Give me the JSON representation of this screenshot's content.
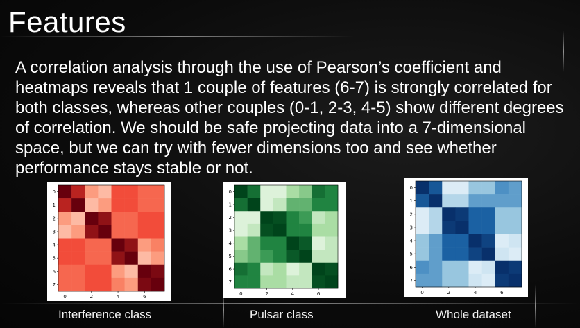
{
  "slide": {
    "title": "Features",
    "body": "A correlation analysis through the use of Pearson’s coefficient and heatmaps reveals that 1 couple of features (6-7) is strongly correlated for both classes, whereas other couples (0-1, 2-3, 4-5) show different degrees of correlation. We should be safe projecting data into a 7-dimensional space, but we can try with fewer dimensions too and see whether performance stays stable or not."
  },
  "chart_data": [
    {
      "type": "heatmap",
      "caption": "Interference class",
      "colormap": "Reds",
      "x_ticks": [
        "0",
        "2",
        "4",
        "6"
      ],
      "y_ticks": [
        "0",
        "1",
        "2",
        "3",
        "4",
        "5",
        "6",
        "7"
      ],
      "matrix": [
        [
          1.0,
          0.8,
          0.3,
          0.2,
          0.6,
          0.6,
          0.5,
          0.5
        ],
        [
          0.8,
          1.0,
          0.2,
          0.3,
          0.6,
          0.6,
          0.5,
          0.5
        ],
        [
          0.3,
          0.2,
          1.0,
          0.9,
          0.5,
          0.5,
          0.6,
          0.6
        ],
        [
          0.2,
          0.3,
          0.9,
          1.0,
          0.5,
          0.5,
          0.6,
          0.6
        ],
        [
          0.6,
          0.6,
          0.5,
          0.5,
          1.0,
          0.9,
          0.3,
          0.4
        ],
        [
          0.6,
          0.6,
          0.5,
          0.5,
          0.9,
          1.0,
          0.2,
          0.3
        ],
        [
          0.5,
          0.5,
          0.6,
          0.6,
          0.3,
          0.2,
          1.0,
          0.95
        ],
        [
          0.5,
          0.5,
          0.6,
          0.6,
          0.4,
          0.3,
          0.95,
          1.0
        ]
      ]
    },
    {
      "type": "heatmap",
      "caption": "Pulsar class",
      "colormap": "Greens",
      "x_ticks": [
        "0",
        "2",
        "4",
        "6"
      ],
      "y_ticks": [
        "0",
        "1",
        "2",
        "3",
        "4",
        "5",
        "6",
        "7"
      ],
      "matrix": [
        [
          1.0,
          0.8,
          0.1,
          0.1,
          0.3,
          0.4,
          0.8,
          0.7
        ],
        [
          0.8,
          1.0,
          0.1,
          0.2,
          0.5,
          0.5,
          0.7,
          0.7
        ],
        [
          0.1,
          0.1,
          1.0,
          0.95,
          0.7,
          0.6,
          0.2,
          0.3
        ],
        [
          0.1,
          0.2,
          0.95,
          1.0,
          0.7,
          0.7,
          0.3,
          0.3
        ],
        [
          0.3,
          0.5,
          0.7,
          0.7,
          1.0,
          0.9,
          0.1,
          0.2
        ],
        [
          0.4,
          0.5,
          0.6,
          0.7,
          0.9,
          1.0,
          0.2,
          0.2
        ],
        [
          0.8,
          0.7,
          0.2,
          0.3,
          0.1,
          0.2,
          1.0,
          0.95
        ],
        [
          0.7,
          0.7,
          0.3,
          0.3,
          0.2,
          0.2,
          0.95,
          1.0
        ]
      ]
    },
    {
      "type": "heatmap",
      "caption": "Whole dataset",
      "colormap": "Blues",
      "x_ticks": [
        "0",
        "2",
        "4",
        "6"
      ],
      "y_ticks": [
        "0",
        "1",
        "2",
        "3",
        "4",
        "5",
        "6",
        "7"
      ],
      "matrix": [
        [
          1.0,
          0.8,
          0.1,
          0.1,
          0.35,
          0.35,
          0.55,
          0.5
        ],
        [
          0.8,
          1.0,
          0.25,
          0.25,
          0.5,
          0.5,
          0.5,
          0.5
        ],
        [
          0.1,
          0.25,
          1.0,
          0.95,
          0.75,
          0.75,
          0.35,
          0.35
        ],
        [
          0.1,
          0.25,
          0.95,
          1.0,
          0.75,
          0.75,
          0.35,
          0.35
        ],
        [
          0.35,
          0.5,
          0.75,
          0.75,
          1.0,
          0.9,
          0.1,
          0.15
        ],
        [
          0.35,
          0.5,
          0.75,
          0.75,
          0.9,
          1.0,
          0.15,
          0.1
        ],
        [
          0.55,
          0.5,
          0.35,
          0.35,
          0.1,
          0.15,
          1.0,
          0.95
        ],
        [
          0.5,
          0.5,
          0.35,
          0.35,
          0.15,
          0.1,
          0.95,
          1.0
        ]
      ]
    }
  ]
}
